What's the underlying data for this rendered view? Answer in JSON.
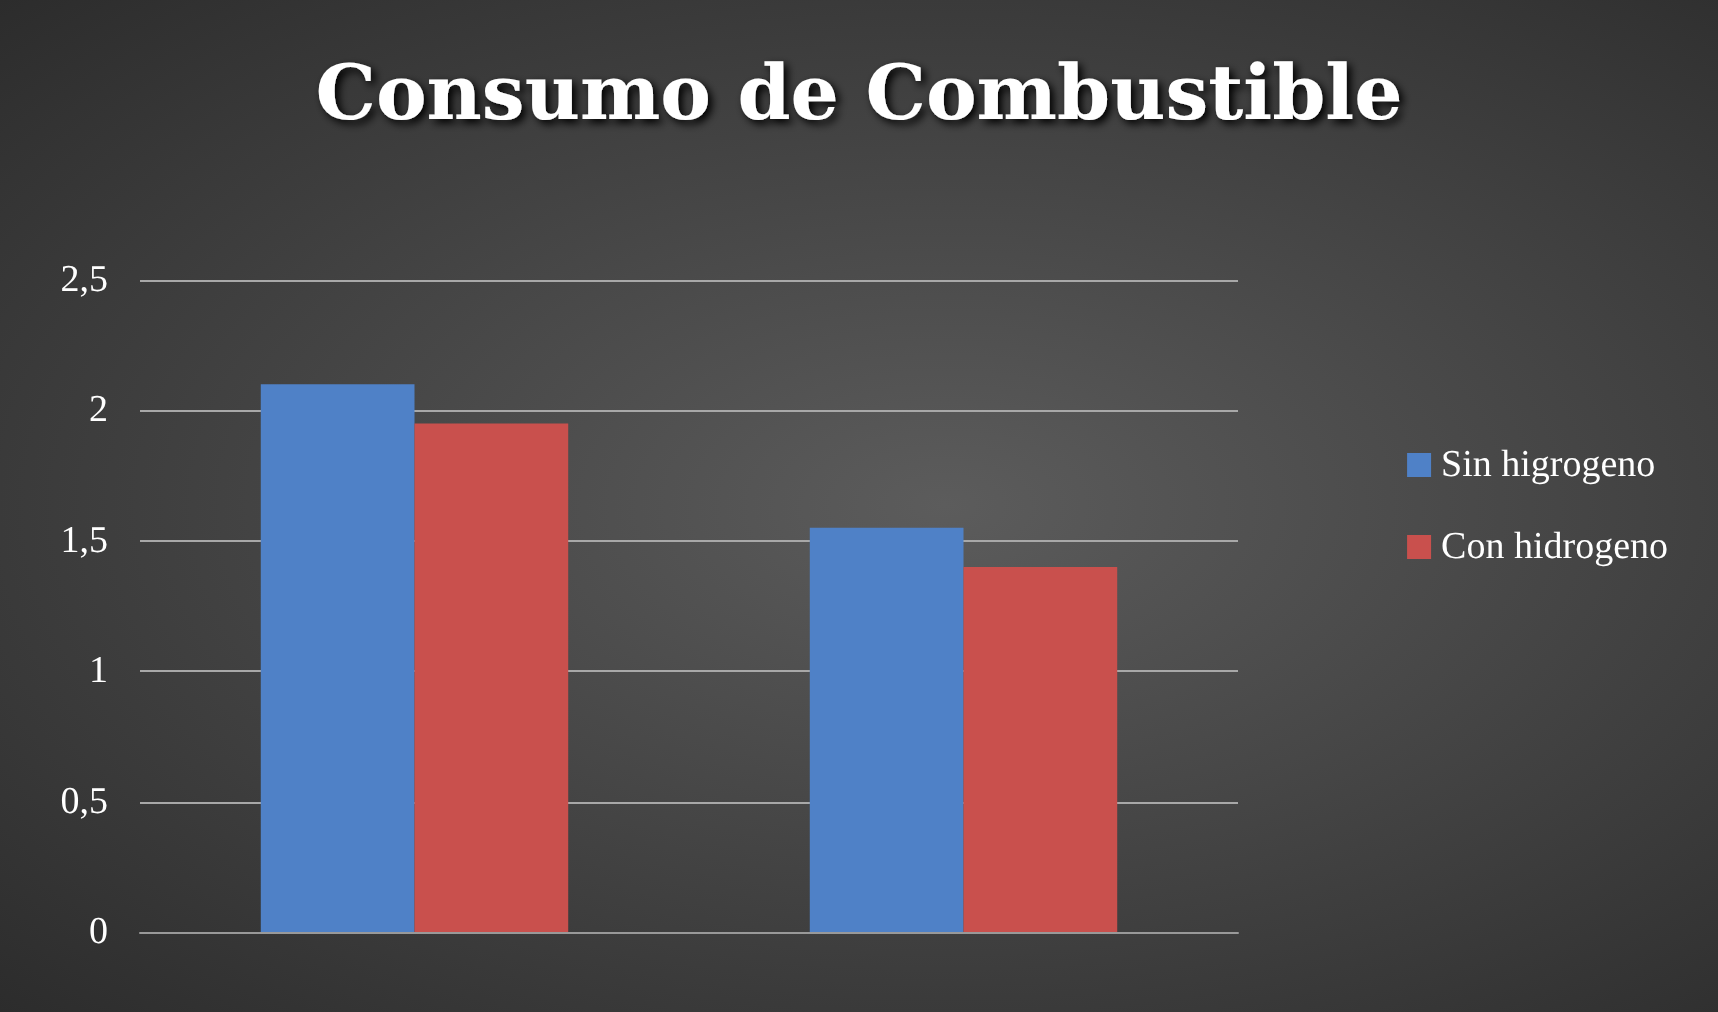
{
  "chart_data": {
    "type": "bar",
    "title": "Consumo de Combustible",
    "categories": [
      null,
      null
    ],
    "series": [
      {
        "name": "Sin higrogeno",
        "color": "#4f81c7",
        "values": [
          2.1,
          1.55
        ]
      },
      {
        "name": "Con hidrogeno",
        "color": "#c9504d",
        "values": [
          1.95,
          1.4
        ]
      }
    ],
    "ylim": [
      0,
      2.5
    ],
    "yticks": [
      0,
      {
        "value": 0.5,
        "label": "0,5"
      },
      1,
      {
        "value": 1.5,
        "label": "1,5"
      },
      2,
      {
        "value": 2.5,
        "label": "2,5"
      }
    ],
    "grid": "y",
    "legend": "right"
  }
}
